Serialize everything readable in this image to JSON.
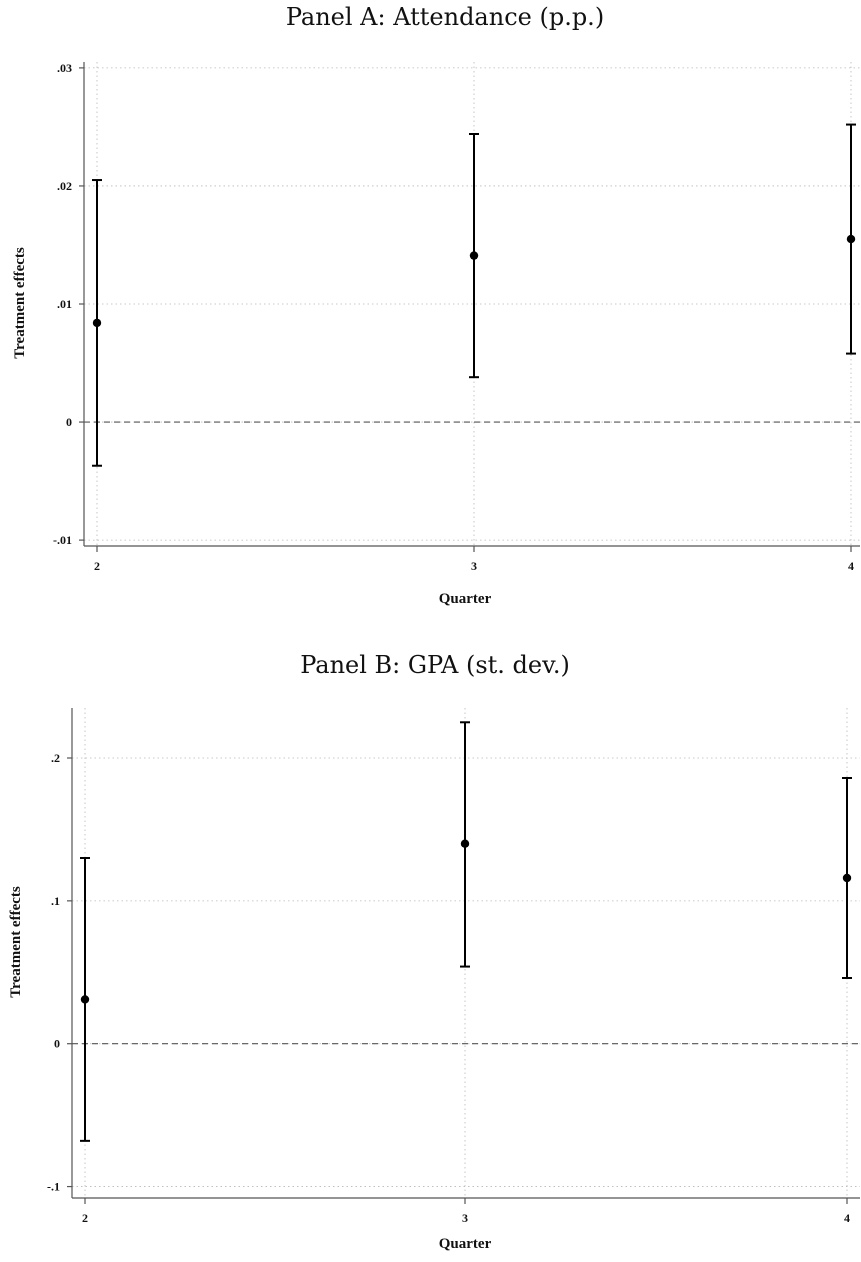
{
  "chart_data": [
    {
      "type": "scatter",
      "title": "Panel A: Attendance (p.p.)",
      "xlabel": "Quarter",
      "ylabel": "Treatment effects",
      "x": [
        2,
        3,
        4
      ],
      "x_tick_labels": [
        "2",
        "3",
        "4"
      ],
      "y_tick_values": [
        -0.01,
        0,
        0.01,
        0.02,
        0.03
      ],
      "y_tick_labels": [
        "-.01",
        "0",
        ".01",
        ".02",
        ".03"
      ],
      "ylim": [
        -0.0105,
        0.0305
      ],
      "xlim": [
        2,
        4
      ],
      "series": [
        {
          "estimate": [
            0.0084,
            0.0141,
            0.0155
          ],
          "ci_low": [
            -0.0037,
            0.0038,
            0.0058
          ],
          "ci_high": [
            0.0205,
            0.0244,
            0.0252
          ]
        }
      ],
      "reference_line_y": 0,
      "grid": true,
      "legend": "none"
    },
    {
      "type": "scatter",
      "title": "Panel B: GPA (st. dev.)",
      "xlabel": "Quarter",
      "ylabel": "Treatment effects",
      "x": [
        2,
        3,
        4
      ],
      "x_tick_labels": [
        "2",
        "3",
        "4"
      ],
      "y_tick_values": [
        -0.1,
        0,
        0.1,
        0.2
      ],
      "y_tick_labels": [
        "-.1",
        "0",
        ".1",
        ".2"
      ],
      "ylim": [
        -0.108,
        0.235
      ],
      "xlim": [
        2,
        4
      ],
      "series": [
        {
          "estimate": [
            0.031,
            0.14,
            0.116
          ],
          "ci_low": [
            -0.068,
            0.054,
            0.046
          ],
          "ci_high": [
            0.13,
            0.225,
            0.186
          ]
        }
      ],
      "reference_line_y": 0,
      "grid": true,
      "legend": "none"
    }
  ]
}
